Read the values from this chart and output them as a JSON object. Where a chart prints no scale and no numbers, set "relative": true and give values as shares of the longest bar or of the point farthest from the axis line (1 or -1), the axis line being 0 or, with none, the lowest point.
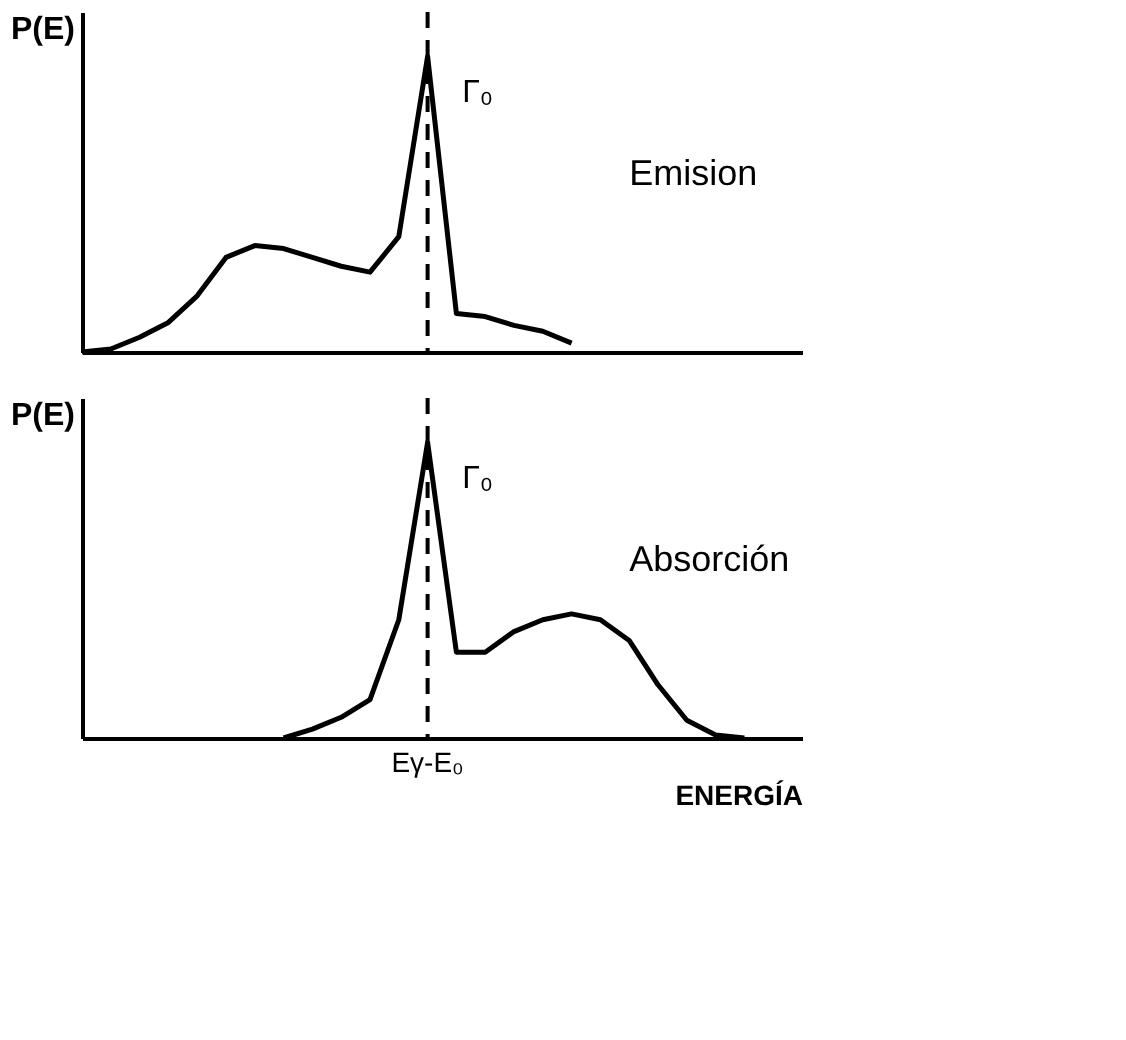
{
  "chart_data": [
    {
      "type": "line",
      "relative": true,
      "ylabel": "P(E)",
      "grid": false,
      "color": "#000000",
      "categories": [
        null,
        null,
        null,
        null,
        null,
        null,
        null,
        null,
        null,
        null,
        null,
        null,
        null,
        null,
        null,
        null,
        null,
        null,
        null,
        null,
        null,
        null,
        null,
        null,
        null
      ],
      "values": [
        0,
        0.01,
        0.05,
        0.1,
        0.19,
        0.32,
        0.36,
        0.35,
        0.32,
        0.29,
        0.27,
        0.39,
        1.0,
        0.13,
        0.12,
        0.09,
        0.07,
        0.03,
        null,
        null,
        null,
        null,
        null,
        null,
        null
      ],
      "annotations": [
        "Γ₀",
        "Emision"
      ]
    },
    {
      "type": "line",
      "relative": true,
      "ylabel": "P(E)",
      "xlabel": "ENERGÍA",
      "grid": false,
      "color": "#000000",
      "categories": [
        null,
        null,
        null,
        null,
        null,
        null,
        null,
        null,
        null,
        null,
        null,
        null,
        null,
        null,
        null,
        null,
        null,
        null,
        null,
        null,
        null,
        null,
        null,
        null,
        null
      ],
      "values": [
        null,
        null,
        null,
        null,
        null,
        null,
        null,
        0,
        0.03,
        0.07,
        0.13,
        0.4,
        1.0,
        0.29,
        0.29,
        0.36,
        0.4,
        0.42,
        0.4,
        0.33,
        0.18,
        0.06,
        0.01,
        0,
        null
      ],
      "annotations": [
        "Γ₀",
        "Absorción",
        "Eγ-E₀"
      ]
    }
  ]
}
